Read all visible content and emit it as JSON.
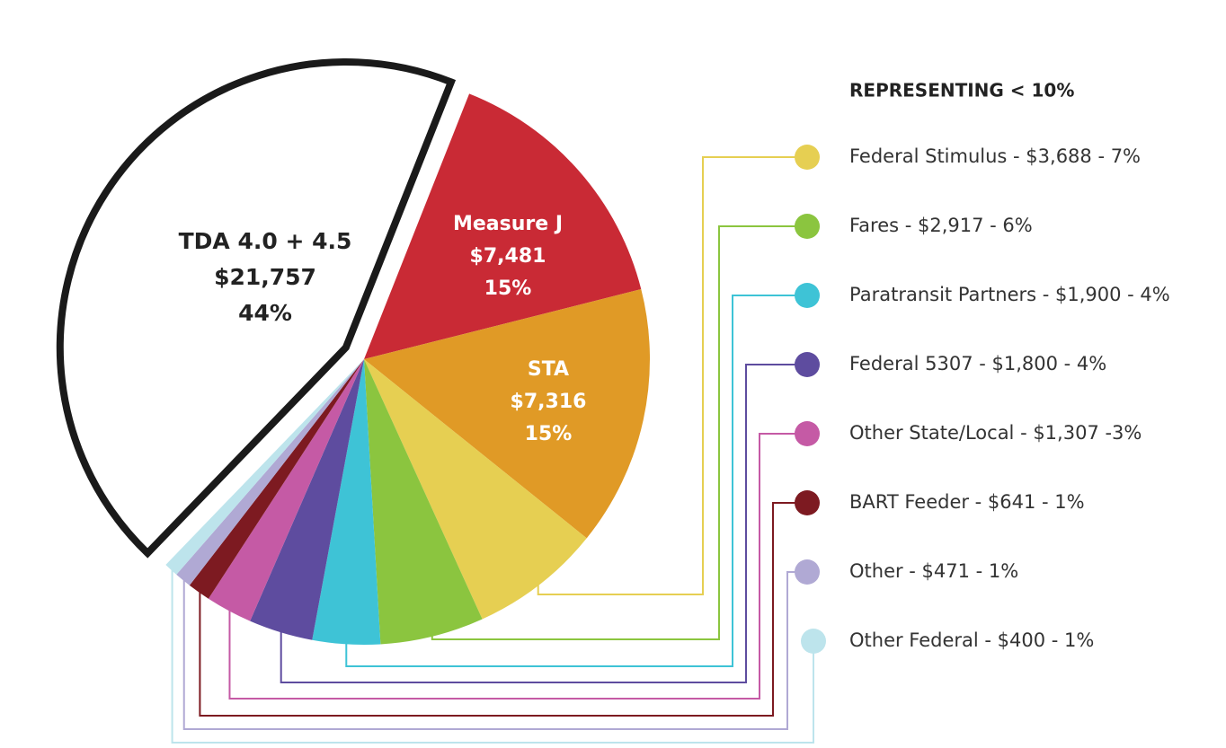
{
  "chart_data": {
    "type": "pie",
    "categories": [
      "TDA 4.0 + 4.5",
      "Measure J",
      "STA",
      "Federal Stimulus - $3,688 - 7%",
      "Fares - $2,917 - 6%",
      "Paratransit Partners - $1,900 - 4%",
      "Federal 5307 - $1,800 - 4%",
      "Other State/Local - $1,307 -3%",
      "BART Feeder - $641 - 1%",
      "Other - $471 - 1%",
      "Other Federal - $400 - 1%"
    ],
    "values": [
      21757,
      7481,
      7316,
      3688,
      2917,
      1900,
      1800,
      1307,
      641,
      471,
      400
    ],
    "value_labels": [
      "$21,757",
      "$7,481",
      "$7,316",
      null,
      null,
      null,
      null,
      null,
      null,
      null,
      null
    ],
    "percent_labels": [
      "44%",
      "15%",
      "15%",
      null,
      null,
      null,
      null,
      null,
      null,
      null,
      null
    ],
    "colors": [
      "#ffffff",
      "#c92a35",
      "#e09a26",
      "#e6cf52",
      "#8bc53f",
      "#3ec3d6",
      "#5e4c9f",
      "#c55aa5",
      "#7d1a21",
      "#b0a9d4",
      "#bde4ec"
    ],
    "legend_title": "REPRESENTING < 10%"
  }
}
